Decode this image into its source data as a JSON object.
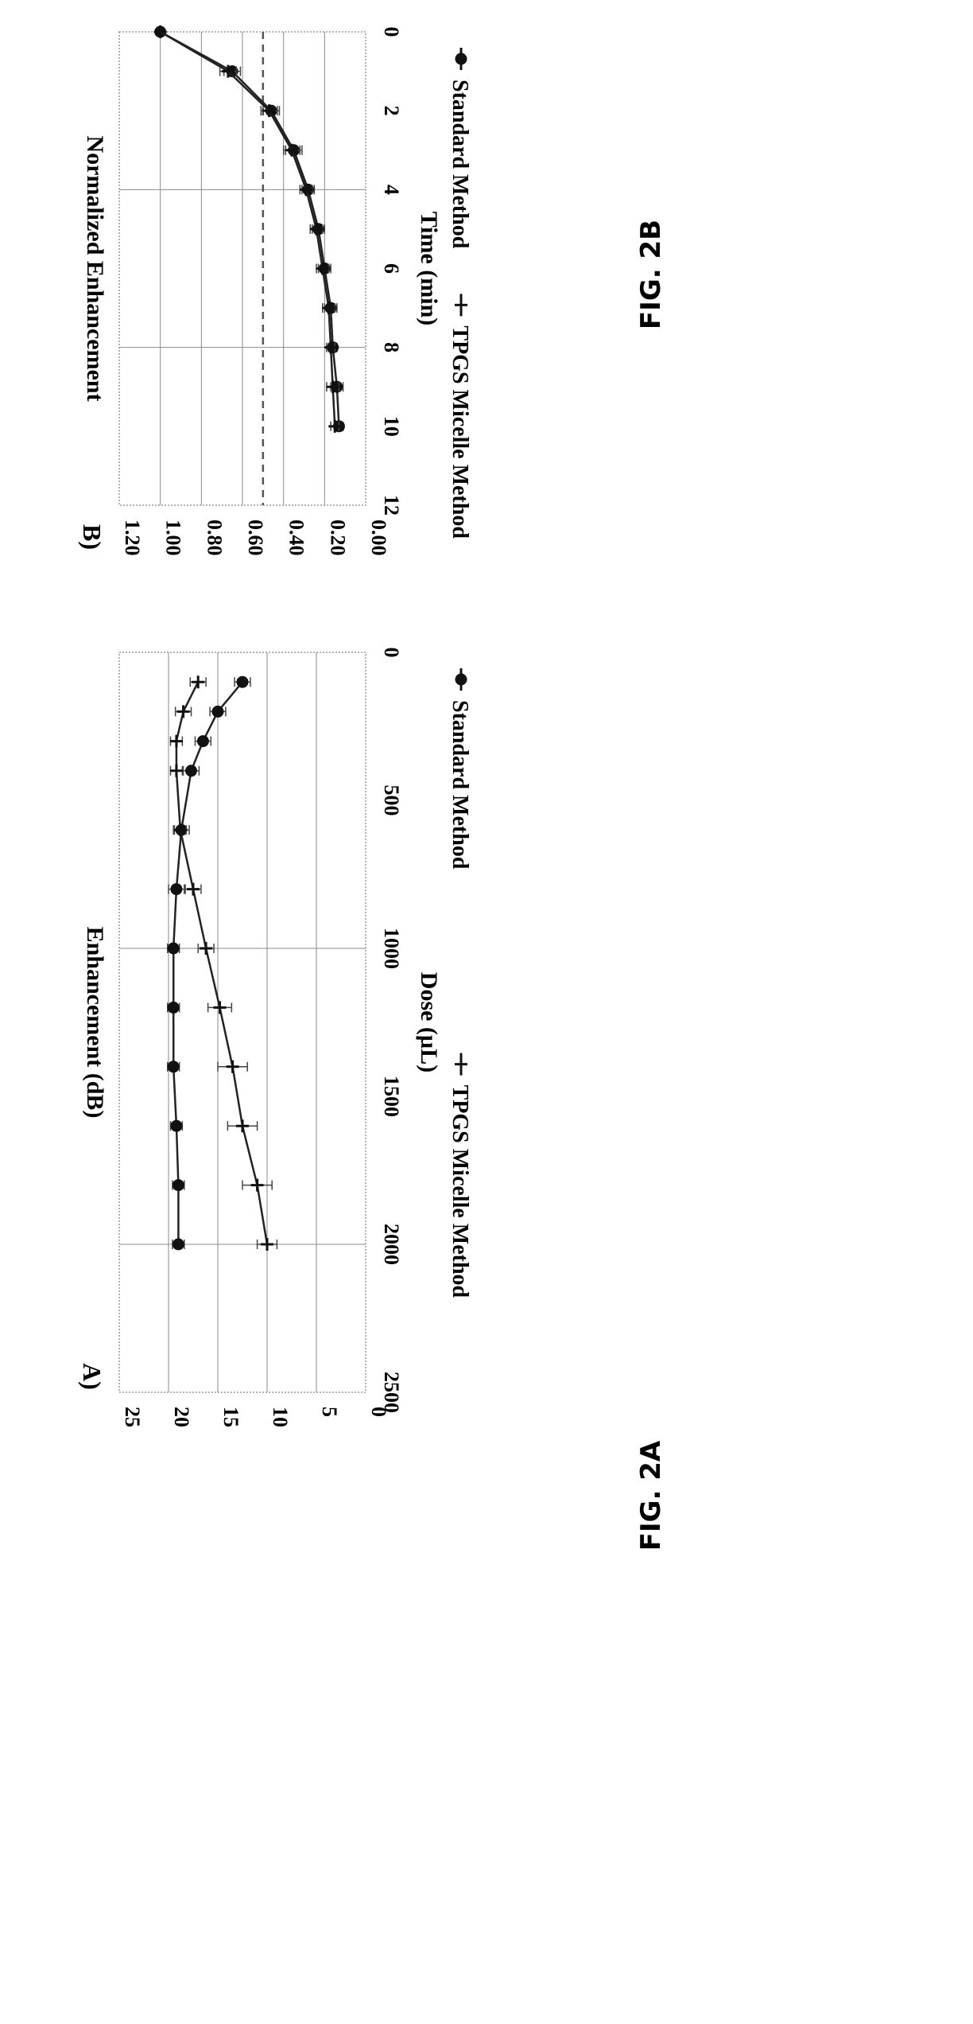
{
  "chart_data": [
    {
      "panel": "A)",
      "type": "line",
      "xlabel": "Dose (µL)",
      "ylabel": "Enhancement (dB)",
      "xlim": [
        0,
        2500
      ],
      "ylim": [
        0,
        25
      ],
      "x_ticks": [
        "0",
        "500",
        "1000",
        "1500",
        "2000",
        "2500"
      ],
      "y_ticks": [
        "0",
        "5",
        "10",
        "15",
        "20",
        "25"
      ],
      "grid": "major",
      "legend_position": "bottom",
      "caption": "FIG. 2A",
      "series": [
        {
          "name": "Standard Method",
          "marker": "circle",
          "points": [
            {
              "x": 100,
              "y": 12.5,
              "err": 0.8
            },
            {
              "x": 200,
              "y": 15.0,
              "err": 0.8
            },
            {
              "x": 300,
              "y": 16.5,
              "err": 0.8
            },
            {
              "x": 400,
              "y": 17.7,
              "err": 0.8
            },
            {
              "x": 600,
              "y": 18.7,
              "err": 0.8
            },
            {
              "x": 800,
              "y": 19.2,
              "err": 0.8
            },
            {
              "x": 1000,
              "y": 19.5,
              "err": 0.6
            },
            {
              "x": 1200,
              "y": 19.5,
              "err": 0.6
            },
            {
              "x": 1400,
              "y": 19.5,
              "err": 0.6
            },
            {
              "x": 1600,
              "y": 19.2,
              "err": 0.6
            },
            {
              "x": 1800,
              "y": 19.0,
              "err": 0.6
            },
            {
              "x": 2000,
              "y": 19.0,
              "err": 0.6
            }
          ]
        },
        {
          "name": "TPGS Micelle Method",
          "marker": "cross",
          "points": [
            {
              "x": 100,
              "y": 17.0,
              "err": 0.8
            },
            {
              "x": 200,
              "y": 18.5,
              "err": 0.8
            },
            {
              "x": 300,
              "y": 19.2,
              "err": 0.6
            },
            {
              "x": 400,
              "y": 19.2,
              "err": 0.6
            },
            {
              "x": 600,
              "y": 18.8,
              "err": 0.6
            },
            {
              "x": 800,
              "y": 17.5,
              "err": 0.8
            },
            {
              "x": 1000,
              "y": 16.2,
              "err": 0.8
            },
            {
              "x": 1200,
              "y": 14.8,
              "err": 1.2
            },
            {
              "x": 1400,
              "y": 13.5,
              "err": 1.5
            },
            {
              "x": 1600,
              "y": 12.5,
              "err": 1.5
            },
            {
              "x": 1800,
              "y": 11.0,
              "err": 1.5
            },
            {
              "x": 2000,
              "y": 10.0,
              "err": 1.0
            }
          ]
        }
      ]
    },
    {
      "panel": "B)",
      "type": "line",
      "xlabel": "Time (min)",
      "ylabel": "Normalized Enhancement",
      "xlim": [
        0,
        12
      ],
      "ylim": [
        0,
        1.2
      ],
      "x_ticks": [
        "0",
        "2",
        "4",
        "6",
        "8",
        "10",
        "12"
      ],
      "y_ticks": [
        "0.00",
        "0.20",
        "0.40",
        "0.60",
        "0.80",
        "1.00",
        "1.20"
      ],
      "grid": "major",
      "reference_line_y": 0.5,
      "legend_position": "bottom",
      "caption": "FIG. 2B",
      "series": [
        {
          "name": "Standard Method",
          "marker": "circle",
          "points": [
            {
              "x": 0,
              "y": 1.0,
              "err": 0.0
            },
            {
              "x": 1,
              "y": 0.65,
              "err": 0.04
            },
            {
              "x": 2,
              "y": 0.46,
              "err": 0.04
            },
            {
              "x": 3,
              "y": 0.35,
              "err": 0.04
            },
            {
              "x": 4,
              "y": 0.28,
              "err": 0.03
            },
            {
              "x": 5,
              "y": 0.23,
              "err": 0.03
            },
            {
              "x": 6,
              "y": 0.2,
              "err": 0.03
            },
            {
              "x": 7,
              "y": 0.17,
              "err": 0.03
            },
            {
              "x": 8,
              "y": 0.16,
              "err": 0.02
            },
            {
              "x": 9,
              "y": 0.14,
              "err": 0.03
            },
            {
              "x": 10,
              "y": 0.13,
              "err": 0.02
            }
          ]
        },
        {
          "name": "TPGS Micelle Method",
          "marker": "cross",
          "points": [
            {
              "x": 0,
              "y": 1.0,
              "err": 0.0
            },
            {
              "x": 1,
              "y": 0.67,
              "err": 0.04
            },
            {
              "x": 2,
              "y": 0.47,
              "err": 0.04
            },
            {
              "x": 3,
              "y": 0.36,
              "err": 0.04
            },
            {
              "x": 4,
              "y": 0.29,
              "err": 0.03
            },
            {
              "x": 5,
              "y": 0.24,
              "err": 0.03
            },
            {
              "x": 6,
              "y": 0.21,
              "err": 0.03
            },
            {
              "x": 7,
              "y": 0.18,
              "err": 0.03
            },
            {
              "x": 8,
              "y": 0.17,
              "err": 0.02
            },
            {
              "x": 9,
              "y": 0.16,
              "err": 0.03
            },
            {
              "x": 10,
              "y": 0.15,
              "err": 0.02
            }
          ]
        }
      ]
    }
  ]
}
